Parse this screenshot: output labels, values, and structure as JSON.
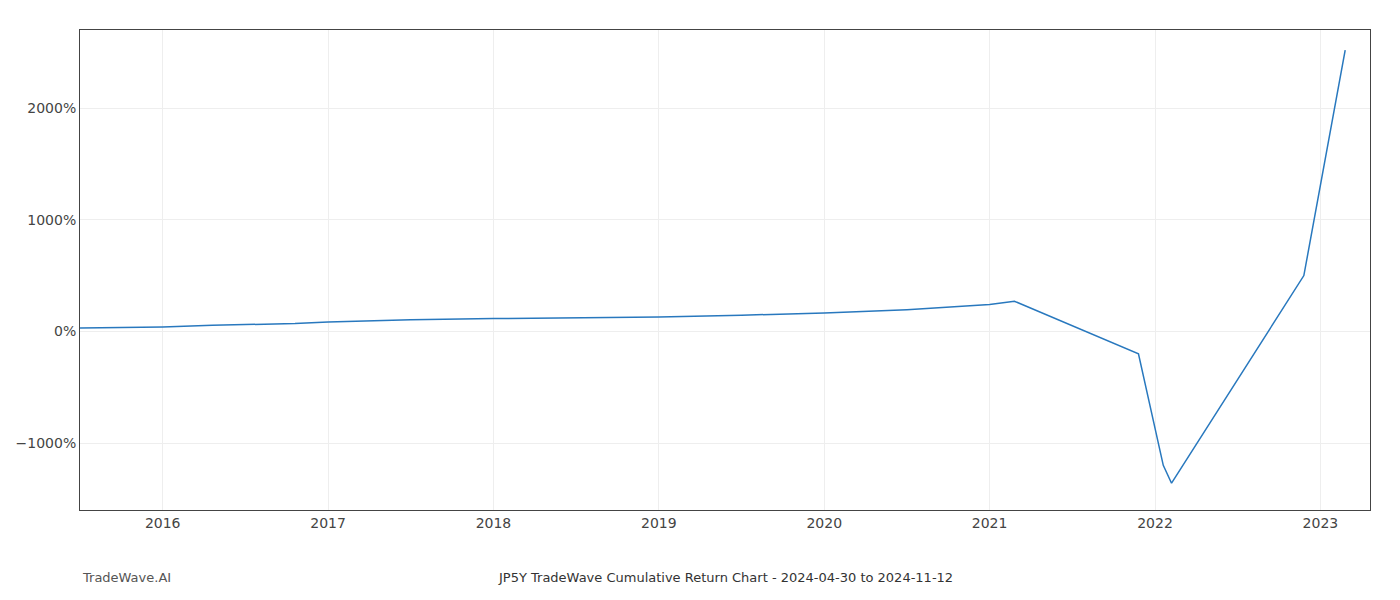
{
  "chart_data": {
    "type": "line",
    "title": "JP5Y TradeWave Cumulative Return Chart - 2024-04-30 to 2024-11-12",
    "annotations": [
      "TradeWave.AI"
    ],
    "x": [
      2015.5,
      2016.0,
      2016.3,
      2016.8,
      2017.0,
      2017.5,
      2018.0,
      2018.5,
      2019.0,
      2019.5,
      2020.0,
      2020.5,
      2021.0,
      2021.15,
      2021.9,
      2022.05,
      2022.1,
      2022.9,
      2023.15
    ],
    "values": [
      30,
      40,
      55,
      70,
      85,
      105,
      115,
      120,
      130,
      145,
      165,
      195,
      240,
      270,
      -200,
      -1200,
      -1360,
      500,
      2520
    ],
    "color": "#2878be",
    "xlim": [
      2015.5,
      2023.3
    ],
    "xticks": [
      2016,
      2017,
      2018,
      2019,
      2020,
      2021,
      2022,
      2023
    ],
    "ylim": [
      -1600,
      2700
    ],
    "yticks": [
      {
        "value": -1000,
        "label": "−1000%"
      },
      {
        "value": 0,
        "label": "0%"
      },
      {
        "value": 1000,
        "label": "1000%"
      },
      {
        "value": 2000,
        "label": "2000%"
      }
    ],
    "grid": true
  }
}
